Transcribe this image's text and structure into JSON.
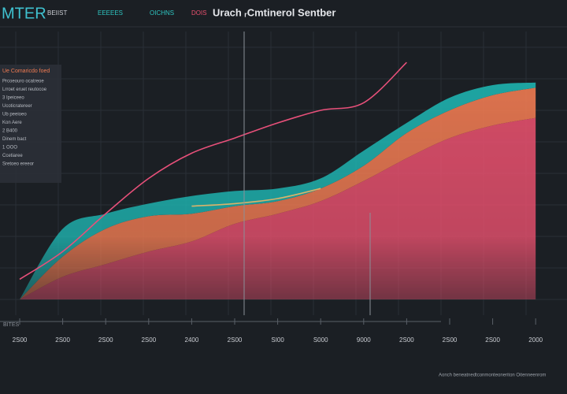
{
  "chart_data": {
    "type": "area",
    "brand": "MTER",
    "title": "Urach ᵣCmtinerol Sentber",
    "tabs": [
      {
        "label": "BEIIST",
        "color": "#c9ccd2"
      },
      {
        "label": "EEEEES",
        "color": "#2ec4c0"
      },
      {
        "label": "OICHNS",
        "color": "#2ec4c0"
      },
      {
        "label": "DOIS",
        "color": "#e8506e"
      }
    ],
    "panel": {
      "heading": "Ue Comaricdo foed",
      "lines": [
        "Prcoeouro ocatreoe",
        "Lrroet eruet reutocoe",
        "3 Ipeiceeo",
        "Ucoticratereer",
        "Ub peeioeo",
        "Kon Aere",
        "2 B400",
        "Dinem bact",
        "1 OOO",
        "Ccetiaree",
        "Sretoeo ereeor"
      ]
    },
    "x_axis_label": "BITES",
    "footnote": "Aonch beneatnedtconmonteoneriton Oitenneenrom",
    "categories": [
      "2S00",
      "2S00",
      "2S00",
      "2S00",
      "2400",
      "2S00",
      "SI00",
      "S000",
      "9000",
      "2S00",
      "2S00",
      "2S00",
      "2000"
    ],
    "ylim": [
      0,
      100
    ],
    "series": [
      {
        "type": "area",
        "color": "#e8506e",
        "values": [
          0,
          9,
          14,
          19,
          23,
          30,
          34,
          39,
          47,
          56,
          64,
          69,
          72
        ]
      },
      {
        "type": "area",
        "color": "#f07b52",
        "values": [
          0,
          8,
          14,
          14,
          11,
          7,
          5,
          5,
          6,
          10,
          11,
          12,
          12
        ]
      },
      {
        "type": "area",
        "color": "#1fb3b0",
        "values": [
          0,
          11,
          6,
          5,
          7,
          6,
          5,
          4,
          6,
          4,
          5,
          4,
          2
        ]
      },
      {
        "type": "line",
        "color": "#e8507a",
        "values": [
          8,
          19,
          34,
          48,
          58,
          64,
          70,
          75,
          78,
          94,
          null,
          null,
          null
        ]
      },
      {
        "type": "line",
        "color": "#d9b36a",
        "values": [
          null,
          null,
          null,
          null,
          37,
          38,
          40,
          44,
          null,
          null,
          null,
          null,
          null
        ]
      }
    ]
  }
}
